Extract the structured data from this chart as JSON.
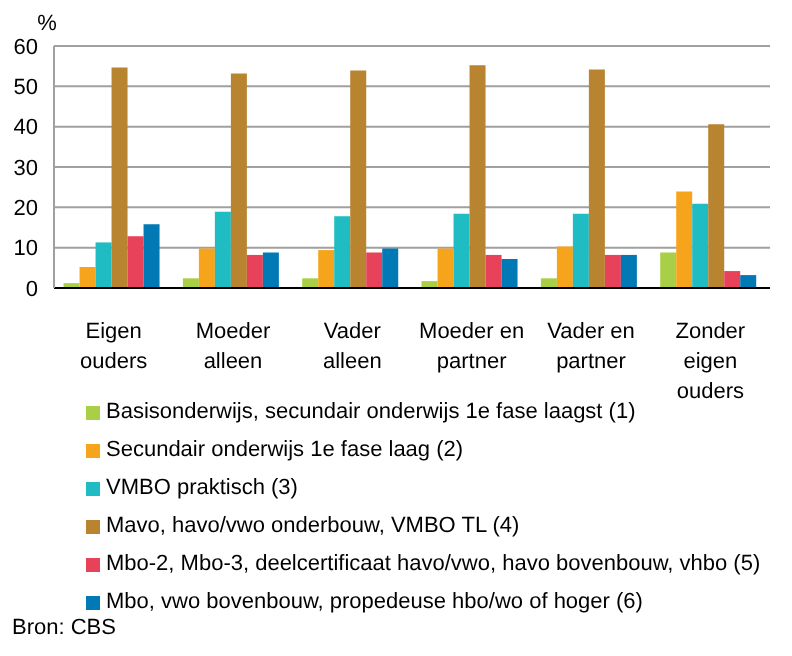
{
  "chart_data": {
    "type": "bar",
    "ylabel": "%",
    "categories": [
      "Eigen ouders",
      "Moeder alleen",
      "Vader alleen",
      "Moeder en partner",
      "Vader en partner",
      "Zonder eigen ouders"
    ],
    "series": [
      {
        "name": "Basisonderwijs, secundair onderwijs 1e fase laagst (1)",
        "color": "#a8cf45",
        "values": [
          1.2,
          2.4,
          2.4,
          1.7,
          2.4,
          8.8
        ]
      },
      {
        "name": "Secundair onderwijs 1e fase laag (2)",
        "color": "#f7a41d",
        "values": [
          5.2,
          9.8,
          9.4,
          9.8,
          10.3,
          23.9
        ]
      },
      {
        "name": "VMBO praktisch (3)",
        "color": "#1fbcc4",
        "values": [
          11.3,
          18.9,
          17.8,
          18.4,
          18.4,
          20.9
        ]
      },
      {
        "name": "Mavo, havo/vwo onderbouw, VMBO TL (4)",
        "color": "#b98430",
        "values": [
          54.7,
          53.2,
          53.9,
          55.2,
          54.2,
          40.6
        ]
      },
      {
        "name": "Mbo-2, Mbo-3, deelcertificaat havo/vwo, havo bovenbouw, vhbo (5)",
        "color": "#e8415a",
        "values": [
          12.8,
          8.2,
          8.8,
          8.2,
          8.2,
          4.2
        ]
      },
      {
        "name": "Mbo, vwo bovenbouw, propedeuse hbo/wo of hoger (6)",
        "color": "#0079b4",
        "values": [
          15.8,
          8.8,
          9.8,
          7.2,
          8.2,
          3.2
        ]
      }
    ],
    "ylim": [
      0,
      60
    ],
    "yticks": [
      0,
      10,
      20,
      30,
      40,
      50,
      60
    ],
    "grid": "y",
    "legend": "bottom",
    "annotations": [
      "Bron: CBS"
    ]
  }
}
